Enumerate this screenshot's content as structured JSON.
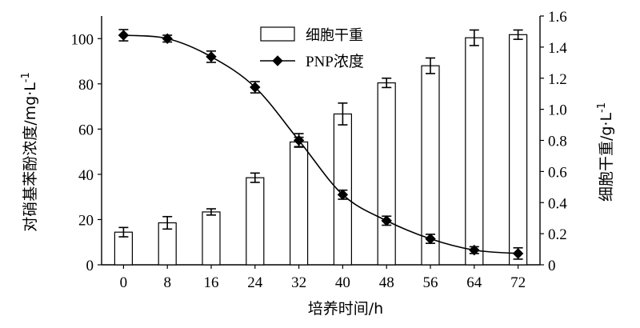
{
  "chart_data": {
    "type": "bar+line",
    "x_label": "培养时间/h",
    "x_categories": [
      "0",
      "8",
      "16",
      "24",
      "32",
      "40",
      "48",
      "56",
      "64",
      "72"
    ],
    "y_left": {
      "label_main": "对硝基苯酚浓度/mg·L",
      "label_sup": "-1",
      "min": 0,
      "max": 110,
      "ticks": [
        "0",
        "20",
        "40",
        "60",
        "80",
        "100"
      ]
    },
    "y_right": {
      "label_main": "细胞干重/g·L",
      "label_sup": "-1",
      "min": 0,
      "max": 1.6,
      "ticks": [
        "0",
        "0.2",
        "0.4",
        "0.6",
        "0.8",
        "1.0",
        "1.2",
        "1.4",
        "1.6"
      ]
    },
    "series": [
      {
        "name": "细胞干重",
        "type": "bar",
        "axis": "right",
        "values": [
          0.21,
          0.27,
          0.34,
          0.56,
          0.79,
          0.97,
          1.17,
          1.28,
          1.46,
          1.48
        ],
        "errors": [
          0.03,
          0.04,
          0.02,
          0.03,
          0.03,
          0.07,
          0.03,
          0.05,
          0.05,
          0.03
        ]
      },
      {
        "name": "PNP浓度",
        "type": "line",
        "axis": "left",
        "values": [
          101.5,
          100,
          92,
          78.5,
          55,
          31,
          19.5,
          11.5,
          6.5,
          5
        ],
        "errors": [
          2.5,
          1.5,
          2.5,
          2.5,
          3,
          2,
          2,
          2,
          1.5,
          2.5
        ]
      }
    ],
    "legend": {
      "position": "top-center",
      "entries": [
        "细胞干重",
        "PNP浓度"
      ]
    }
  }
}
